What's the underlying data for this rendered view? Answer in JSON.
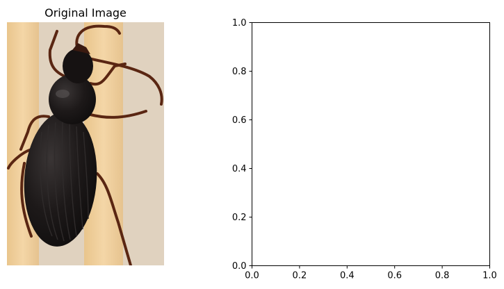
{
  "left_panel": {
    "title": "Original Image",
    "image_subject": "ground-beetle-on-wooden-stick",
    "colors": {
      "background": "#e0d2bf",
      "stick": "#efcd98",
      "beetle_body": "#171414",
      "beetle_legs": "#5a2612"
    }
  },
  "chart_data": {
    "type": "scatter",
    "title": "",
    "xlabel": "",
    "ylabel": "",
    "xlim": [
      0.0,
      1.0
    ],
    "ylim": [
      0.0,
      1.0
    ],
    "x_ticks": [
      "0.0",
      "0.2",
      "0.4",
      "0.6",
      "0.8",
      "1.0"
    ],
    "y_ticks": [
      "0.0",
      "0.2",
      "0.4",
      "0.6",
      "0.8",
      "1.0"
    ],
    "series": [],
    "grid": false
  }
}
